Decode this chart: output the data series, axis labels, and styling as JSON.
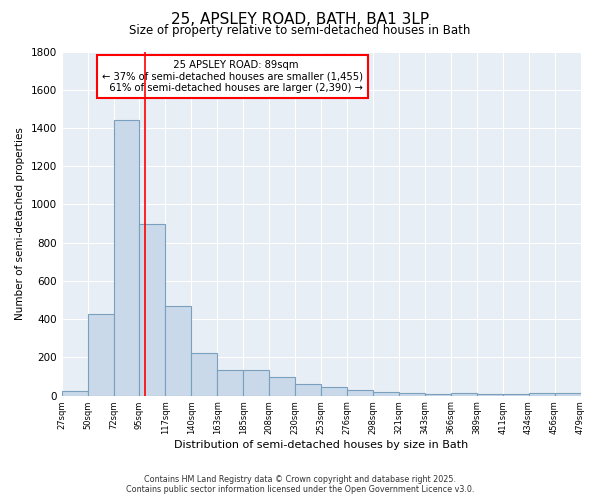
{
  "title": "25, APSLEY ROAD, BATH, BA1 3LP",
  "subtitle": "Size of property relative to semi-detached houses in Bath",
  "xlabel": "Distribution of semi-detached houses by size in Bath",
  "ylabel": "Number of semi-detached properties",
  "bar_values": [
    25,
    425,
    1440,
    900,
    470,
    225,
    135,
    135,
    95,
    60,
    45,
    30,
    20,
    15,
    10,
    15,
    10,
    10,
    15,
    15
  ],
  "bin_labels": [
    "27sqm",
    "50sqm",
    "72sqm",
    "95sqm",
    "117sqm",
    "140sqm",
    "163sqm",
    "185sqm",
    "208sqm",
    "230sqm",
    "253sqm",
    "276sqm",
    "298sqm",
    "321sqm",
    "343sqm",
    "366sqm",
    "389sqm",
    "411sqm",
    "434sqm",
    "456sqm",
    "479sqm"
  ],
  "bar_color": "#c9d9ea",
  "bar_edge_color": "#7aa0be",
  "property_label": "25 APSLEY ROAD: 89sqm",
  "smaller_pct": 37,
  "smaller_count": 1455,
  "larger_pct": 61,
  "larger_count": 2390,
  "vline_x": 2.72,
  "ylim": [
    0,
    1800
  ],
  "yticks": [
    0,
    200,
    400,
    600,
    800,
    1000,
    1200,
    1400,
    1600,
    1800
  ],
  "bg_color": "#e8eef5",
  "grid_color": "#ffffff",
  "footer1": "Contains HM Land Registry data © Crown copyright and database right 2025.",
  "footer2": "Contains public sector information licensed under the Open Government Licence v3.0."
}
